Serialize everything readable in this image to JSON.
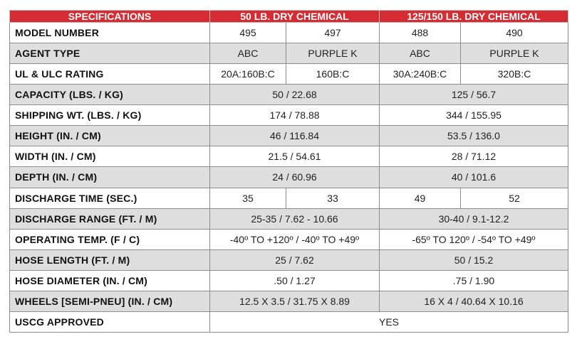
{
  "header": {
    "col1": "SPECIFICATIONS",
    "col2": "50 LB. DRY CHEMICAL",
    "col3": "125/150 LB. DRY CHEMICAL"
  },
  "rows": [
    {
      "label": "MODEL NUMBER",
      "cells": [
        "495",
        "497",
        "488",
        "490"
      ]
    },
    {
      "label": "AGENT TYPE",
      "cells": [
        "ABC",
        "PURPLE K",
        "ABC",
        "PURPLE K"
      ]
    },
    {
      "label": "UL & ULC RATING",
      "cells": [
        "20A:160B:C",
        "160B:C",
        "30A:240B:C",
        "320B:C"
      ]
    },
    {
      "label": "CAPACITY (LBS. / KG)",
      "cells": [
        "50 / 22.68",
        "125 / 56.7"
      ]
    },
    {
      "label": "SHIPPING WT. (LBS. / KG)",
      "cells": [
        "174 / 78.88",
        "344 / 155.95"
      ]
    },
    {
      "label": "HEIGHT (IN. / CM)",
      "cells": [
        "46 / 116.84",
        "53.5 / 136.0"
      ]
    },
    {
      "label": "WIDTH (IN. / CM)",
      "cells": [
        "21.5 / 54.61",
        "28 / 71.12"
      ]
    },
    {
      "label": "DEPTH (IN. / CM)",
      "cells": [
        "24 / 60.96",
        "40 / 101.6"
      ]
    },
    {
      "label": "DISCHARGE TIME (SEC.)",
      "cells": [
        "35",
        "33",
        "49",
        "52"
      ]
    },
    {
      "label": "DISCHARGE RANGE (FT. / M)",
      "cells": [
        "25-35 / 7.62 - 10.66",
        "30-40 / 9.1-12.2"
      ]
    },
    {
      "label": "OPERATING TEMP. (F / C)",
      "cells": [
        "-40º TO +120º / -40º TO +49º",
        "-65º TO 120º / -54º TO +49º"
      ]
    },
    {
      "label": "HOSE LENGTH (FT. / M)",
      "cells": [
        "25 / 7.62",
        "50 / 15.2"
      ]
    },
    {
      "label": "HOSE DIAMETER (IN. / CM)",
      "cells": [
        ".50 / 1.27",
        ".75 / 1.90"
      ]
    },
    {
      "label": "WHEELS [SEMI-PNEU] (IN. / CM)",
      "cells": [
        "12.5 X 3.5 / 31.75 X 8.89",
        "16 X 4 / 40.64 X 10.16"
      ]
    },
    {
      "label": "USCG APPROVED",
      "cells": [
        "YES"
      ]
    }
  ]
}
